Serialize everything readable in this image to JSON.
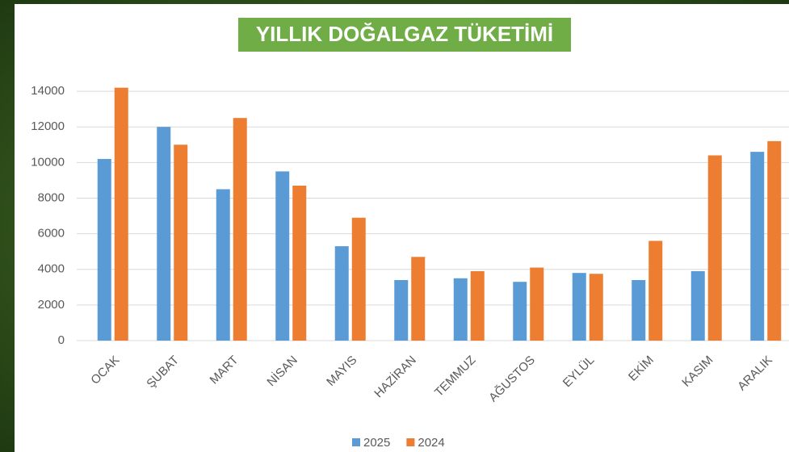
{
  "chart_data": {
    "type": "bar",
    "title": "YILLIK DOĞALGAZ TÜKETİMİ",
    "categories": [
      "OCAK",
      "ŞUBAT",
      "MART",
      "NİSAN",
      "MAYIS",
      "HAZİRAN",
      "TEMMUZ",
      "AĞUSTOS",
      "EYLÜL",
      "EKİM",
      "KASIM",
      "ARALIK"
    ],
    "series": [
      {
        "name": "2025",
        "color": "#5b9bd5",
        "values": [
          10200,
          12000,
          8500,
          9500,
          5300,
          3400,
          3500,
          3300,
          3800,
          3400,
          3900,
          10600
        ]
      },
      {
        "name": "2024",
        "color": "#ed7d31",
        "values": [
          14200,
          11000,
          12500,
          8700,
          6900,
          4700,
          3900,
          4100,
          3750,
          5600,
          10400,
          11200
        ]
      }
    ],
    "ylim": [
      0,
      15000
    ],
    "yticks": [
      0,
      2000,
      4000,
      6000,
      8000,
      10000,
      12000,
      14000
    ],
    "grid": true,
    "legend": "bottom"
  }
}
